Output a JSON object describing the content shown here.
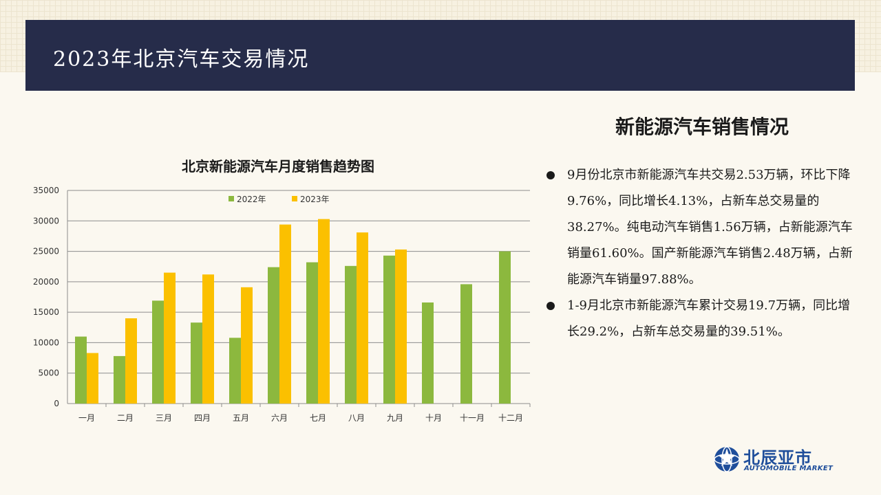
{
  "header": {
    "title": "2023年北京汽车交易情况"
  },
  "section": {
    "title": "新能源汽车销售情况",
    "bullets": [
      "9月份北京市新能源汽车共交易2.53万辆，环比下降9.76%，同比增长4.13%，占新车总交易量的38.27%。纯电动汽车销售1.56万辆，占新能源汽车销量61.60%。国产新能源汽车销售2.48万辆，占新能源汽车销量97.88%。",
      "1-9月北京市新能源汽车累计交易19.7万辆，同比增长29.2%，占新车总交易量的39.51%。"
    ]
  },
  "logo": {
    "cn": "北辰亚市",
    "en": "AUTOMOBILE MARKET",
    "icon": "globe-star-icon"
  },
  "colors": {
    "header_bg": "#262c4a",
    "series_2022": "#8cb83e",
    "series_2023": "#fbc000",
    "logo": "#1f4e9b"
  },
  "chart_data": {
    "type": "bar",
    "title": "北京新能源汽车月度销售趋势图",
    "xlabel": "",
    "ylabel": "",
    "ylim": [
      0,
      35000
    ],
    "yticks": [
      0,
      5000,
      10000,
      15000,
      20000,
      25000,
      30000,
      35000
    ],
    "grid": true,
    "legend": "top-center",
    "categories": [
      "一月",
      "二月",
      "三月",
      "四月",
      "五月",
      "六月",
      "七月",
      "八月",
      "九月",
      "十月",
      "十一月",
      "十二月"
    ],
    "series": [
      {
        "name": "2022年",
        "color": "#8cb83e",
        "values": [
          11000,
          7800,
          16900,
          13300,
          10800,
          22400,
          23200,
          22600,
          24300,
          16600,
          19600,
          25000
        ]
      },
      {
        "name": "2023年",
        "color": "#fbc000",
        "values": [
          8300,
          14000,
          21500,
          21200,
          19100,
          29400,
          30300,
          28100,
          25300,
          null,
          null,
          null
        ]
      }
    ]
  }
}
